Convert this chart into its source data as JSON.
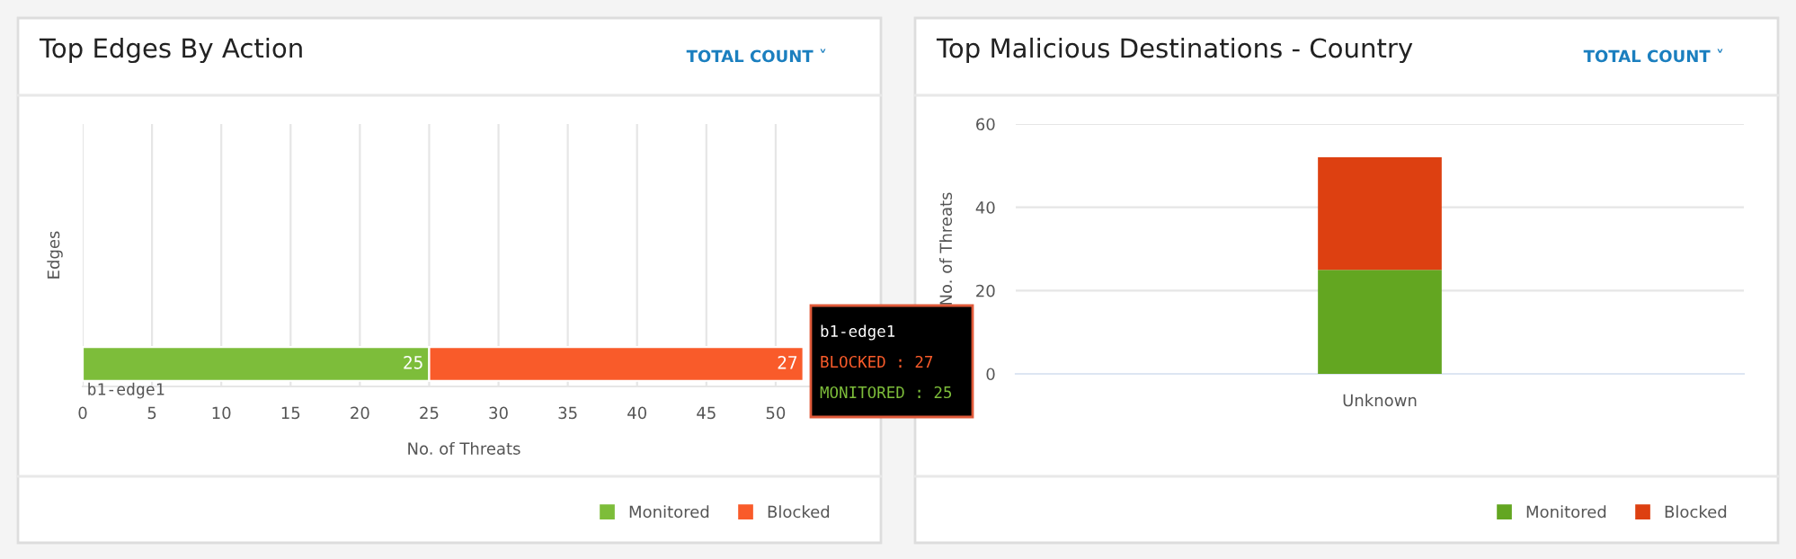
{
  "chart_data": [
    {
      "type": "bar",
      "title": "Top Edges By Action",
      "orientation": "horizontal",
      "stacked": true,
      "categories": [
        "b1-edge1"
      ],
      "series": [
        {
          "name": "Monitored",
          "color": "#7dbd3a",
          "values": [
            25
          ]
        },
        {
          "name": "Blocked",
          "color": "#f95b2a",
          "values": [
            27
          ]
        }
      ],
      "xlabel": "No. of Threats",
      "ylabel": "Edges",
      "xlim": [
        0,
        55
      ],
      "xticks": [
        0,
        5,
        10,
        15,
        20,
        25,
        30,
        35,
        40,
        45,
        50
      ],
      "grid": "x",
      "legend": "bottom right",
      "data_labels": true,
      "annotations": [
        "TOTAL COUNT ˅",
        "b1-edge1",
        "BLOCKED : 27",
        "MONITORED : 25"
      ]
    },
    {
      "type": "bar",
      "title": "Top Malicious Destinations - Country",
      "stacked": true,
      "categories": [
        "Unknown"
      ],
      "series": [
        {
          "name": "Monitored",
          "color": "#63a621",
          "values": [
            25
          ]
        },
        {
          "name": "Blocked",
          "color": "#dd4011",
          "values": [
            27
          ]
        }
      ],
      "ylabel": "No. of Threats",
      "ylim": [
        0,
        60
      ],
      "yticks": [
        0,
        20,
        40,
        60
      ],
      "grid": "y",
      "legend": "bottom right",
      "annotations": [
        "TOTAL COUNT ˅"
      ]
    }
  ]
}
